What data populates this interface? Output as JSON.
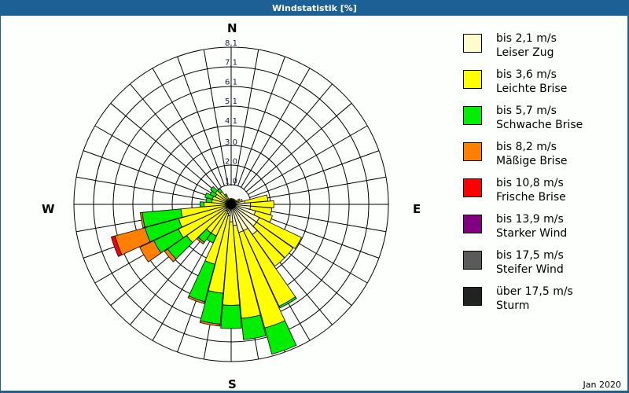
{
  "title": "Windstatistik [%]",
  "compass": {
    "north": "N",
    "east": "E",
    "south": "S",
    "west": "W"
  },
  "footnote": "Jan 2020",
  "legend": [
    {
      "range": "bis 2,1 m/s",
      "name": "Leiser Zug",
      "color": "#fffccc"
    },
    {
      "range": "bis 3,6 m/s",
      "name": "Leichte Brise",
      "color": "#ffff00"
    },
    {
      "range": "bis 5,7 m/s",
      "name": "Schwache Brise",
      "color": "#00ee00"
    },
    {
      "range": "bis 8,2 m/s",
      "name": "Mäßige Brise",
      "color": "#ff8000"
    },
    {
      "range": "bis 10,8 m/s",
      "name": "Frische Brise",
      "color": "#ff0000"
    },
    {
      "range": "bis 13,9 m/s",
      "name": "Starker Wind",
      "color": "#800080"
    },
    {
      "range": "bis 17,5 m/s",
      "name": "Steifer Wind",
      "color": "#5a5a5a"
    },
    {
      "range": "über 17,5 m/s",
      "name": "Sturm",
      "color": "#222222"
    }
  ],
  "chart_data": {
    "type": "wind-rose",
    "title": "Windstatistik [%]",
    "period": "Jan 2020",
    "ring_labels": [
      "1,0",
      "2,0",
      "3,0",
      "4,1",
      "5,1",
      "6,1",
      "7,1",
      "8,1"
    ],
    "ring_values": [
      1.0,
      2.0,
      3.0,
      4.1,
      5.1,
      6.1,
      7.1,
      8.1
    ],
    "rmax": 8.1,
    "directions_deg": [
      0,
      10,
      20,
      30,
      40,
      50,
      60,
      70,
      80,
      90,
      100,
      110,
      120,
      130,
      140,
      150,
      160,
      170,
      180,
      190,
      200,
      210,
      220,
      230,
      240,
      250,
      260,
      270,
      280,
      290,
      300,
      310,
      320,
      330,
      340,
      350
    ],
    "series_names": [
      "bis 2,1 m/s",
      "bis 3,6 m/s",
      "bis 5,7 m/s",
      "bis 8,2 m/s",
      "bis 10,8 m/s",
      "bis 13,9 m/s",
      "bis 17,5 m/s",
      "über 17,5 m/s"
    ],
    "cumulative_percent": [
      [
        0.2,
        0.3,
        0.3,
        0,
        0,
        0,
        0,
        0
      ],
      [
        0.2,
        0.3,
        0.3,
        0,
        0,
        0,
        0,
        0
      ],
      [
        0.2,
        0.3,
        0.3,
        0,
        0,
        0,
        0,
        0
      ],
      [
        0.2,
        0.3,
        0.3,
        0,
        0,
        0,
        0,
        0
      ],
      [
        0.2,
        0.3,
        0.3,
        0,
        0,
        0,
        0,
        0
      ],
      [
        0.2,
        0.3,
        0.3,
        0,
        0,
        0,
        0,
        0
      ],
      [
        0.3,
        0.5,
        0.5,
        0,
        0,
        0,
        0,
        0
      ],
      [
        0.4,
        0.6,
        0.6,
        0,
        0,
        0,
        0,
        0
      ],
      [
        0.7,
        1.9,
        1.9,
        0,
        0,
        0,
        0,
        0
      ],
      [
        1.0,
        2.2,
        2.2,
        0,
        0,
        0,
        0,
        0
      ],
      [
        1.0,
        2.1,
        2.1,
        0,
        0,
        0,
        0,
        0
      ],
      [
        1.3,
        2.2,
        2.2,
        0,
        0,
        0,
        0,
        0
      ],
      [
        1.6,
        4.0,
        4.0,
        0,
        0,
        0,
        0,
        0
      ],
      [
        1.6,
        3.9,
        3.9,
        0,
        0,
        0,
        0,
        0
      ],
      [
        1.9,
        3.9,
        3.9,
        0,
        0,
        0,
        0,
        0
      ],
      [
        1.5,
        5.8,
        5.9,
        0,
        0,
        0,
        0,
        0
      ],
      [
        1.5,
        6.6,
        8.0,
        0,
        0,
        0,
        0,
        0
      ],
      [
        1.1,
        5.9,
        7.0,
        0,
        0,
        0,
        0,
        0
      ],
      [
        0.9,
        5.2,
        6.4,
        0,
        0,
        0,
        0,
        0
      ],
      [
        0.6,
        4.6,
        6.2,
        6.3,
        0,
        0,
        0,
        0
      ],
      [
        0.5,
        3.2,
        5.2,
        5.3,
        0,
        0,
        0,
        0
      ],
      [
        0.4,
        1.8,
        2.2,
        2.2,
        0,
        0,
        0,
        0
      ],
      [
        0.4,
        1.8,
        2.4,
        2.5,
        0,
        0,
        0,
        0
      ],
      [
        0.3,
        2.8,
        4.0,
        4.2,
        0,
        0,
        0,
        0
      ],
      [
        0.3,
        3.0,
        4.4,
        5.2,
        0,
        0,
        0,
        0
      ],
      [
        0.3,
        2.8,
        4.6,
        6.2,
        6.4,
        0,
        0,
        0
      ],
      [
        0.3,
        2.6,
        4.6,
        4.7,
        0,
        0,
        0,
        0
      ],
      [
        0.3,
        1.4,
        1.6,
        1.6,
        0,
        0,
        0,
        0
      ],
      [
        0.3,
        1.0,
        1.3,
        0,
        0,
        0,
        0,
        0
      ],
      [
        0.3,
        1.0,
        1.4,
        0,
        0,
        0,
        0,
        0
      ],
      [
        0.3,
        0.9,
        1.2,
        0,
        0,
        0,
        0,
        0
      ],
      [
        0.3,
        1.0,
        1.3,
        0,
        0,
        0,
        0,
        0
      ],
      [
        0.3,
        0.8,
        1.0,
        0,
        0,
        0,
        0,
        0
      ],
      [
        0.2,
        0.5,
        0.6,
        0,
        0,
        0,
        0,
        0
      ],
      [
        0.2,
        0.3,
        0.3,
        0,
        0,
        0,
        0,
        0
      ],
      [
        0.2,
        0.3,
        0.3,
        0,
        0,
        0,
        0,
        0
      ]
    ],
    "legend_position": "right",
    "grid": true
  }
}
